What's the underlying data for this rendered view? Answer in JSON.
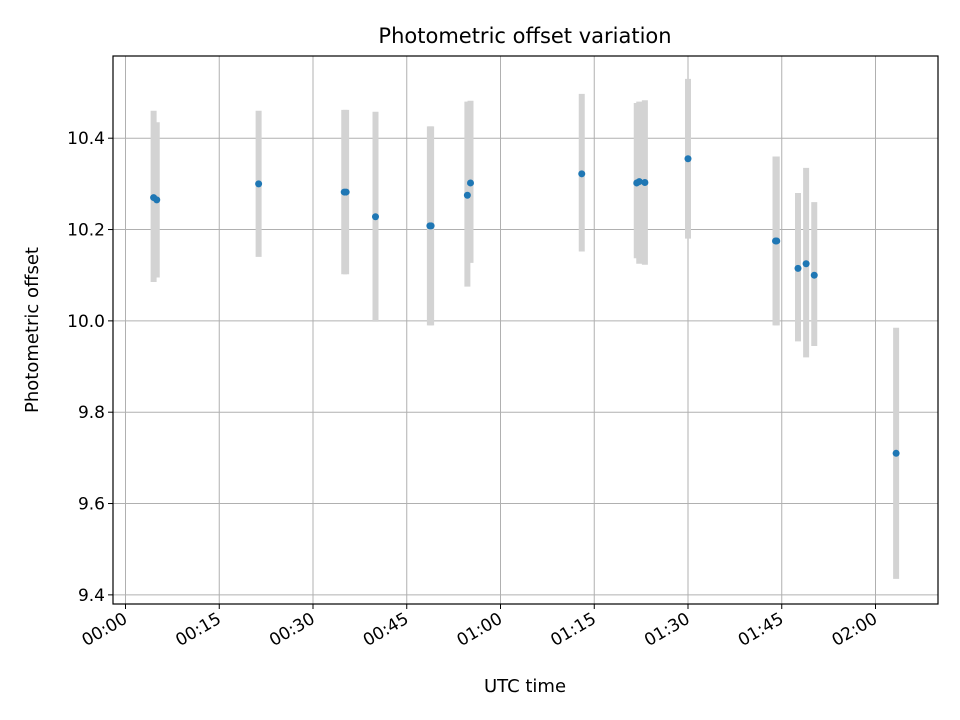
{
  "chart_data": {
    "type": "scatter",
    "title": "Photometric offset variation",
    "xlabel": "UTC time",
    "ylabel": "Photometric offset",
    "x_tick_labels": [
      "00:00",
      "00:15",
      "00:30",
      "00:45",
      "01:00",
      "01:15",
      "01:30",
      "01:45",
      "02:00"
    ],
    "y_tick_labels": [
      "9.4",
      "9.6",
      "9.8",
      "10.0",
      "10.2",
      "10.4"
    ],
    "xlim": [
      "23:58",
      "02:10"
    ],
    "ylim": [
      9.38,
      10.58
    ],
    "grid": true,
    "series": [
      {
        "x": [
          "00:04.5",
          "00:05",
          "00:21.3",
          "00:35",
          "00:35.3",
          "00:40",
          "00:48.7",
          "00:48.9",
          "00:54.7",
          "00:55.2",
          "01:13",
          "01:21.8",
          "01:22.2",
          "01:23.1",
          "01:30",
          "01:44",
          "01:44.2",
          "01:47.6",
          "01:48.9",
          "01:50.2",
          "02:03.3"
        ],
        "y": [
          10.27,
          10.265,
          10.3,
          10.282,
          10.282,
          10.228,
          10.208,
          10.208,
          10.275,
          10.302,
          10.322,
          10.302,
          10.305,
          10.303,
          10.355,
          10.175,
          10.175,
          10.115,
          10.125,
          10.1,
          9.71
        ],
        "yerr_low": [
          0.185,
          0.17,
          0.16,
          0.18,
          0.18,
          0.23,
          0.218,
          0.218,
          0.2,
          0.175,
          0.17,
          0.165,
          0.18,
          0.18,
          0.175,
          0.185,
          0.185,
          0.16,
          0.205,
          0.155,
          0.275
        ],
        "yerr_high": [
          0.19,
          0.17,
          0.16,
          0.18,
          0.18,
          0.23,
          0.218,
          0.218,
          0.205,
          0.18,
          0.175,
          0.175,
          0.175,
          0.18,
          0.175,
          0.185,
          0.185,
          0.165,
          0.21,
          0.16,
          0.275
        ],
        "marker_color": "#1f77b4",
        "errorbar_color": "#d3d3d3"
      }
    ]
  }
}
